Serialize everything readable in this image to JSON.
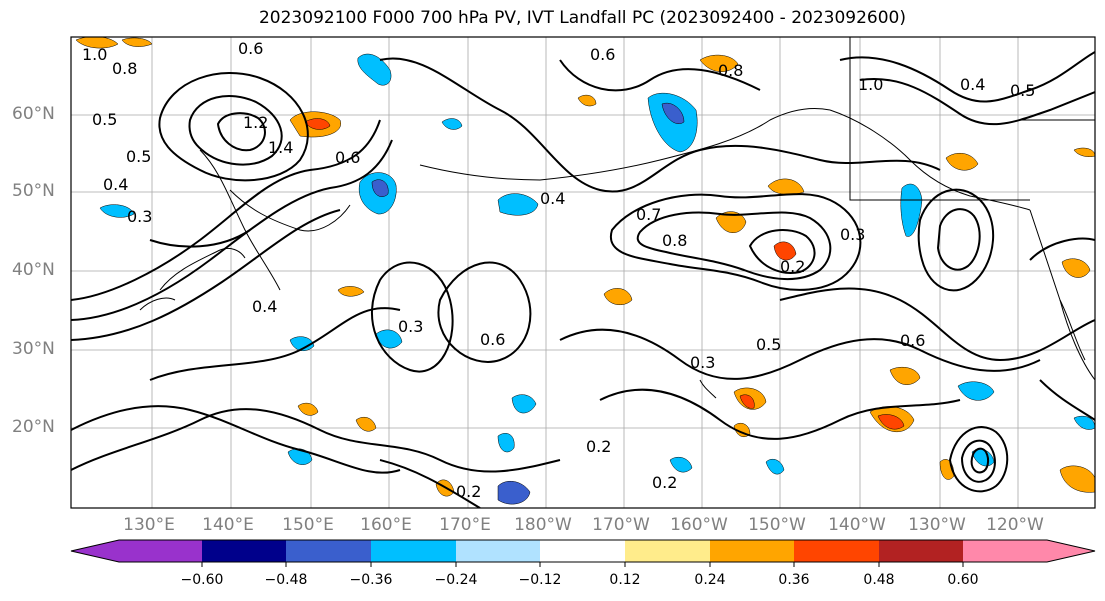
{
  "title": "2023092100 F000 700 hPa PV, IVT Landfall PC (2023092400 - 2023092600)",
  "lat_labels": [
    "60°N",
    "50°N",
    "40°N",
    "30°N",
    "20°N"
  ],
  "lon_labels": [
    "130°E",
    "140°E",
    "150°E",
    "160°E",
    "170°E",
    "180°W",
    "170°W",
    "160°W",
    "150°W",
    "140°W",
    "130°W",
    "120°W"
  ],
  "colorbar": {
    "colors": [
      "#9932cc",
      "#00008b",
      "#3a5fcd",
      "#00bfff",
      "#b0e2ff",
      "#ffffff",
      "#ffec8b",
      "#ffa500",
      "#ff4500",
      "#b22222",
      "#ff88aa"
    ],
    "tick_labels": [
      "−0.60",
      "−0.48",
      "−0.36",
      "−0.24",
      "−0.12",
      "0.12",
      "0.24",
      "0.36",
      "0.48",
      "0.60"
    ]
  },
  "contour_labels": [
    "0.8",
    "0.6",
    "1.0",
    "0.5",
    "1.2",
    "1.4",
    "0.4",
    "0.3",
    "0.6",
    "0.5",
    "0.3",
    "0.4",
    "0.7",
    "0.8",
    "0.2",
    "0.3",
    "0.5",
    "0.6",
    "0.2",
    "0.2",
    "0.3",
    "0.2",
    "0.6",
    "0.4",
    "0.6",
    "0.5",
    "1.0",
    "0.8",
    "0.4"
  ],
  "colors": {
    "grid": "#a9a9a9",
    "contour": "#000000",
    "coast": "#000000",
    "axis_text": "#808080"
  }
}
